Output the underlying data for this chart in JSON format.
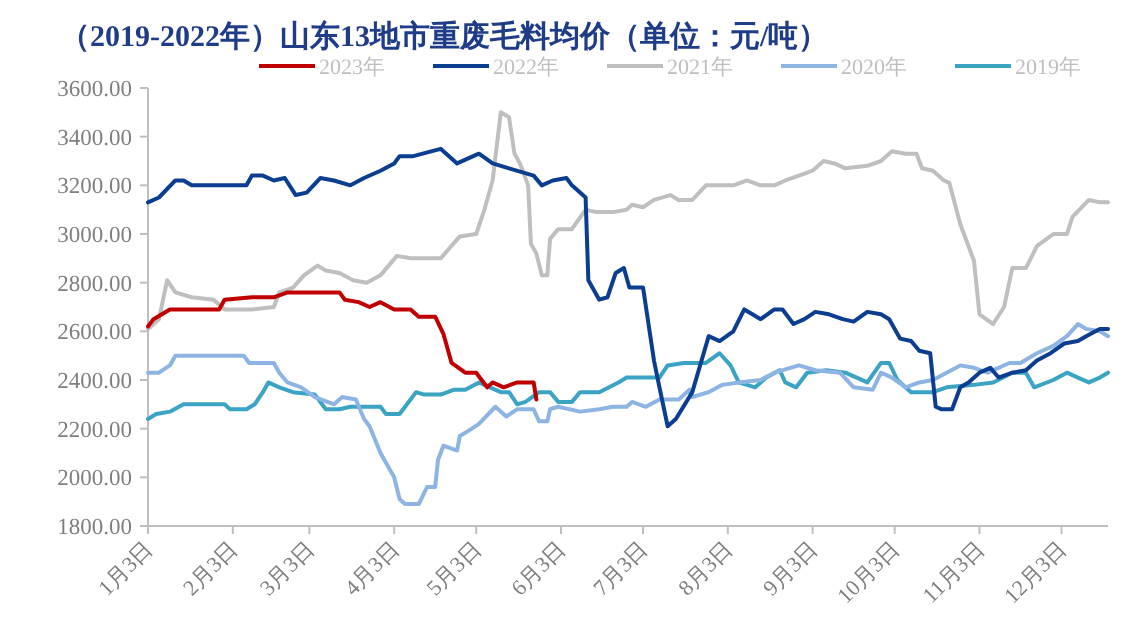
{
  "chart_data": {
    "type": "line",
    "title": "（2019-2022年）山东13地市重废毛料均价（单位：元/吨）",
    "xlim": [
      "--01-03",
      "--12-20"
    ],
    "xticks": [
      {
        "value": "--01-03",
        "label": "1月3日"
      },
      {
        "value": "--02-03",
        "label": "2月3日"
      },
      {
        "value": "--03-03",
        "label": "3月3日"
      },
      {
        "value": "--04-03",
        "label": "4月3日"
      },
      {
        "value": "--05-03",
        "label": "5月3日"
      },
      {
        "value": "--06-03",
        "label": "6月3日"
      },
      {
        "value": "--07-03",
        "label": "7月3日"
      },
      {
        "value": "--08-03",
        "label": "8月3日"
      },
      {
        "value": "--09-03",
        "label": "9月3日"
      },
      {
        "value": "--10-03",
        "label": "10月3日"
      },
      {
        "value": "--11-03",
        "label": "11月3日"
      },
      {
        "value": "--12-03",
        "label": "12月3日"
      }
    ],
    "ylim": [
      1800,
      3600
    ],
    "yticks": [
      {
        "value": 1800,
        "label": "1800.00"
      },
      {
        "value": 2000,
        "label": "2000.00"
      },
      {
        "value": 2200,
        "label": "2200.00"
      },
      {
        "value": 2400,
        "label": "2400.00"
      },
      {
        "value": 2600,
        "label": "2600.00"
      },
      {
        "value": 2800,
        "label": "2800.00"
      },
      {
        "value": 3000,
        "label": "3000.00"
      },
      {
        "value": 3200,
        "label": "3200.00"
      },
      {
        "value": 3400,
        "label": "3400.00"
      },
      {
        "value": 3600,
        "label": "3600.00"
      }
    ],
    "grid": false,
    "legend": "top",
    "marker": "none",
    "line_style": "solid",
    "series": [
      {
        "name": "2023年",
        "color": "#c00000",
        "x": [
          "--01-03",
          "--01-05",
          "--01-11",
          "--01-29",
          "--01-31",
          "--02-10",
          "--02-18",
          "--02-23",
          "--03-14",
          "--03-16",
          "--03-21",
          "--03-25",
          "--03-29",
          "--04-03",
          "--04-09",
          "--04-12",
          "--04-18",
          "--04-21",
          "--04-24",
          "--04-29",
          "--05-03",
          "--05-07",
          "--05-09",
          "--05-13",
          "--05-18",
          "--05-24",
          "--05-25"
        ],
        "values": [
          2620,
          2650,
          2690,
          2690,
          2730,
          2740,
          2740,
          2760,
          2760,
          2730,
          2720,
          2700,
          2720,
          2690,
          2690,
          2660,
          2660,
          2590,
          2470,
          2430,
          2430,
          2370,
          2390,
          2370,
          2390,
          2390,
          2320
        ]
      },
      {
        "name": "2022年",
        "color": "#0b3d91",
        "x": [
          "--01-03",
          "--01-07",
          "--01-13",
          "--01-16",
          "--01-19",
          "--02-08",
          "--02-10",
          "--02-14",
          "--02-18",
          "--02-22",
          "--02-26",
          "--03-02",
          "--03-07",
          "--03-12",
          "--03-18",
          "--03-23",
          "--03-29",
          "--04-03",
          "--04-05",
          "--04-10",
          "--04-20",
          "--04-26",
          "--05-04",
          "--05-09",
          "--05-15",
          "--05-24",
          "--05-27",
          "--05-31",
          "--06-05",
          "--06-07",
          "--06-12",
          "--06-13",
          "--06-17",
          "--06-20",
          "--06-23",
          "--06-26",
          "--06-28",
          "--07-03",
          "--07-07",
          "--07-09",
          "--07-12",
          "--07-15",
          "--07-21",
          "--07-27",
          "--07-31",
          "--08-05",
          "--08-09",
          "--08-12",
          "--08-15",
          "--08-20",
          "--08-23",
          "--08-27",
          "--08-31",
          "--09-04",
          "--09-09",
          "--09-14",
          "--09-18",
          "--09-23",
          "--09-28",
          "--10-01",
          "--10-05",
          "--10-09",
          "--10-12",
          "--10-16",
          "--10-18",
          "--10-20",
          "--10-24",
          "--10-27",
          "--10-30",
          "--11-03",
          "--11-07",
          "--11-10",
          "--11-15",
          "--11-20",
          "--11-24",
          "--11-29",
          "--12-04",
          "--12-09",
          "--12-12",
          "--12-17",
          "--12-20"
        ],
        "values": [
          3130,
          3150,
          3220,
          3220,
          3200,
          3200,
          3240,
          3240,
          3220,
          3230,
          3160,
          3170,
          3230,
          3220,
          3200,
          3230,
          3260,
          3290,
          3320,
          3320,
          3350,
          3290,
          3330,
          3290,
          3270,
          3240,
          3200,
          3220,
          3230,
          3200,
          3150,
          2810,
          2730,
          2740,
          2840,
          2860,
          2780,
          2780,
          2480,
          2370,
          2210,
          2240,
          2350,
          2580,
          2560,
          2600,
          2690,
          2670,
          2650,
          2690,
          2690,
          2630,
          2650,
          2680,
          2670,
          2650,
          2640,
          2680,
          2670,
          2650,
          2570,
          2560,
          2520,
          2510,
          2290,
          2280,
          2280,
          2370,
          2390,
          2430,
          2450,
          2410,
          2430,
          2440,
          2480,
          2510,
          2550,
          2560,
          2580,
          2610,
          2610
        ]
      },
      {
        "name": "2021年",
        "color": "#bfbfbf",
        "x": [
          "--01-03",
          "--01-07",
          "--01-10",
          "--01-13",
          "--01-19",
          "--01-27",
          "--01-31",
          "--02-10",
          "--02-18",
          "--02-20",
          "--02-25",
          "--03-01",
          "--03-06",
          "--03-09",
          "--03-14",
          "--03-19",
          "--03-24",
          "--03-29",
          "--04-04",
          "--04-09",
          "--04-20",
          "--04-27",
          "--05-03",
          "--05-06",
          "--05-09",
          "--05-12",
          "--05-15",
          "--05-17",
          "--05-19",
          "--05-22",
          "--05-23",
          "--05-25",
          "--05-27",
          "--05-29",
          "--05-30",
          "--06-02",
          "--06-07",
          "--06-12",
          "--06-16",
          "--06-22",
          "--06-27",
          "--06-29",
          "--07-03",
          "--07-07",
          "--07-13",
          "--07-16",
          "--07-21",
          "--07-26",
          "--08-05",
          "--08-10",
          "--08-15",
          "--08-20",
          "--08-24",
          "--08-29",
          "--09-03",
          "--09-07",
          "--09-11",
          "--09-15",
          "--09-23",
          "--09-28",
          "--10-02",
          "--10-07",
          "--10-11",
          "--10-13",
          "--10-17",
          "--10-21",
          "--10-23",
          "--10-27",
          "--11-01",
          "--11-03",
          "--11-08",
          "--11-12",
          "--11-15",
          "--11-20",
          "--11-24",
          "--11-30",
          "--12-05",
          "--12-07",
          "--12-13",
          "--12-17",
          "--12-20"
        ],
        "values": [
          2610,
          2650,
          2810,
          2760,
          2740,
          2730,
          2690,
          2690,
          2700,
          2760,
          2780,
          2830,
          2870,
          2850,
          2840,
          2810,
          2800,
          2830,
          2910,
          2900,
          2900,
          2990,
          3000,
          3100,
          3220,
          3500,
          3480,
          3330,
          3290,
          3200,
          2960,
          2920,
          2830,
          2830,
          2980,
          3020,
          3020,
          3100,
          3090,
          3090,
          3100,
          3120,
          3110,
          3140,
          3160,
          3140,
          3140,
          3200,
          3200,
          3220,
          3200,
          3200,
          3220,
          3240,
          3260,
          3300,
          3290,
          3270,
          3280,
          3300,
          3340,
          3330,
          3330,
          3270,
          3260,
          3220,
          3210,
          3040,
          2890,
          2670,
          2630,
          2700,
          2860,
          2860,
          2950,
          3000,
          3000,
          3070,
          3140,
          3130,
          3130
        ]
      },
      {
        "name": "2020年",
        "color": "#8db4e2",
        "x": [
          "--01-03",
          "--01-07",
          "--01-11",
          "--01-13",
          "--01-29",
          "--02-07",
          "--02-09",
          "--02-18",
          "--02-20",
          "--02-23",
          "--02-28",
          "--03-05",
          "--03-12",
          "--03-15",
          "--03-20",
          "--03-23",
          "--03-25",
          "--03-29",
          "--04-03",
          "--04-05",
          "--04-07",
          "--04-12",
          "--04-15",
          "--04-18",
          "--04-19",
          "--04-21",
          "--04-26",
          "--04-27",
          "--04-30",
          "--05-04",
          "--05-10",
          "--05-14",
          "--05-18",
          "--05-24",
          "--05-26",
          "--05-29",
          "--05-30",
          "--06-02",
          "--06-10",
          "--06-17",
          "--06-22",
          "--06-27",
          "--06-29",
          "--07-04",
          "--07-09",
          "--07-16",
          "--07-20",
          "--07-21",
          "--07-27",
          "--08-01",
          "--08-07",
          "--08-15",
          "--08-20",
          "--08-29",
          "--09-04",
          "--09-13",
          "--09-18",
          "--09-25",
          "--09-28",
          "--10-02",
          "--10-07",
          "--10-12",
          "--10-17",
          "--10-22",
          "--10-27",
          "--11-01",
          "--11-06",
          "--11-14",
          "--11-18",
          "--11-24",
          "--11-30",
          "--12-05",
          "--12-09",
          "--12-12",
          "--12-17",
          "--12-20"
        ],
        "values": [
          2430,
          2430,
          2460,
          2500,
          2500,
          2500,
          2470,
          2470,
          2430,
          2390,
          2370,
          2330,
          2300,
          2330,
          2320,
          2240,
          2210,
          2100,
          2000,
          1910,
          1890,
          1890,
          1960,
          1960,
          2070,
          2130,
          2110,
          2170,
          2190,
          2220,
          2290,
          2250,
          2280,
          2280,
          2230,
          2230,
          2280,
          2290,
          2270,
          2280,
          2290,
          2290,
          2310,
          2290,
          2320,
          2320,
          2360,
          2330,
          2350,
          2380,
          2390,
          2400,
          2430,
          2460,
          2440,
          2430,
          2370,
          2360,
          2430,
          2410,
          2370,
          2390,
          2400,
          2430,
          2460,
          2450,
          2430,
          2470,
          2470,
          2510,
          2540,
          2580,
          2630,
          2610,
          2600,
          2580
        ]
      },
      {
        "name": "2019年",
        "color": "#3ba3c3",
        "x": [
          "--01-03",
          "--01-06",
          "--01-11",
          "--01-16",
          "--01-22",
          "--01-31",
          "--02-02",
          "--02-08",
          "--02-11",
          "--02-14",
          "--02-16",
          "--02-20",
          "--02-25",
          "--03-05",
          "--03-09",
          "--03-14",
          "--03-18",
          "--03-29",
          "--03-31",
          "--04-05",
          "--04-07",
          "--04-11",
          "--04-14",
          "--04-20",
          "--04-25",
          "--04-29",
          "--05-04",
          "--05-08",
          "--05-12",
          "--05-15",
          "--05-18",
          "--05-21",
          "--05-26",
          "--05-30",
          "--06-02",
          "--06-07",
          "--06-10",
          "--06-17",
          "--06-24",
          "--06-27",
          "--07-09",
          "--07-12",
          "--07-18",
          "--07-26",
          "--07-31",
          "--08-04",
          "--08-07",
          "--08-13",
          "--08-17",
          "--08-22",
          "--08-24",
          "--08-28",
          "--09-01",
          "--09-08",
          "--09-15",
          "--09-23",
          "--09-28",
          "--10-01",
          "--10-04",
          "--10-09",
          "--10-17",
          "--10-22",
          "--11-01",
          "--11-08",
          "--11-15",
          "--11-20",
          "--11-23",
          "--11-30",
          "--12-05",
          "--12-09",
          "--12-13",
          "--12-17",
          "--12-20"
        ],
        "values": [
          2240,
          2260,
          2270,
          2300,
          2300,
          2300,
          2280,
          2280,
          2300,
          2350,
          2390,
          2370,
          2350,
          2340,
          2280,
          2280,
          2290,
          2290,
          2260,
          2260,
          2290,
          2350,
          2340,
          2340,
          2360,
          2360,
          2390,
          2370,
          2350,
          2350,
          2300,
          2310,
          2350,
          2350,
          2310,
          2310,
          2350,
          2350,
          2390,
          2410,
          2410,
          2460,
          2470,
          2470,
          2510,
          2460,
          2390,
          2370,
          2410,
          2440,
          2390,
          2370,
          2430,
          2440,
          2430,
          2390,
          2470,
          2470,
          2400,
          2350,
          2350,
          2370,
          2380,
          2390,
          2430,
          2430,
          2370,
          2400,
          2430,
          2410,
          2390,
          2410,
          2430
        ]
      }
    ]
  }
}
